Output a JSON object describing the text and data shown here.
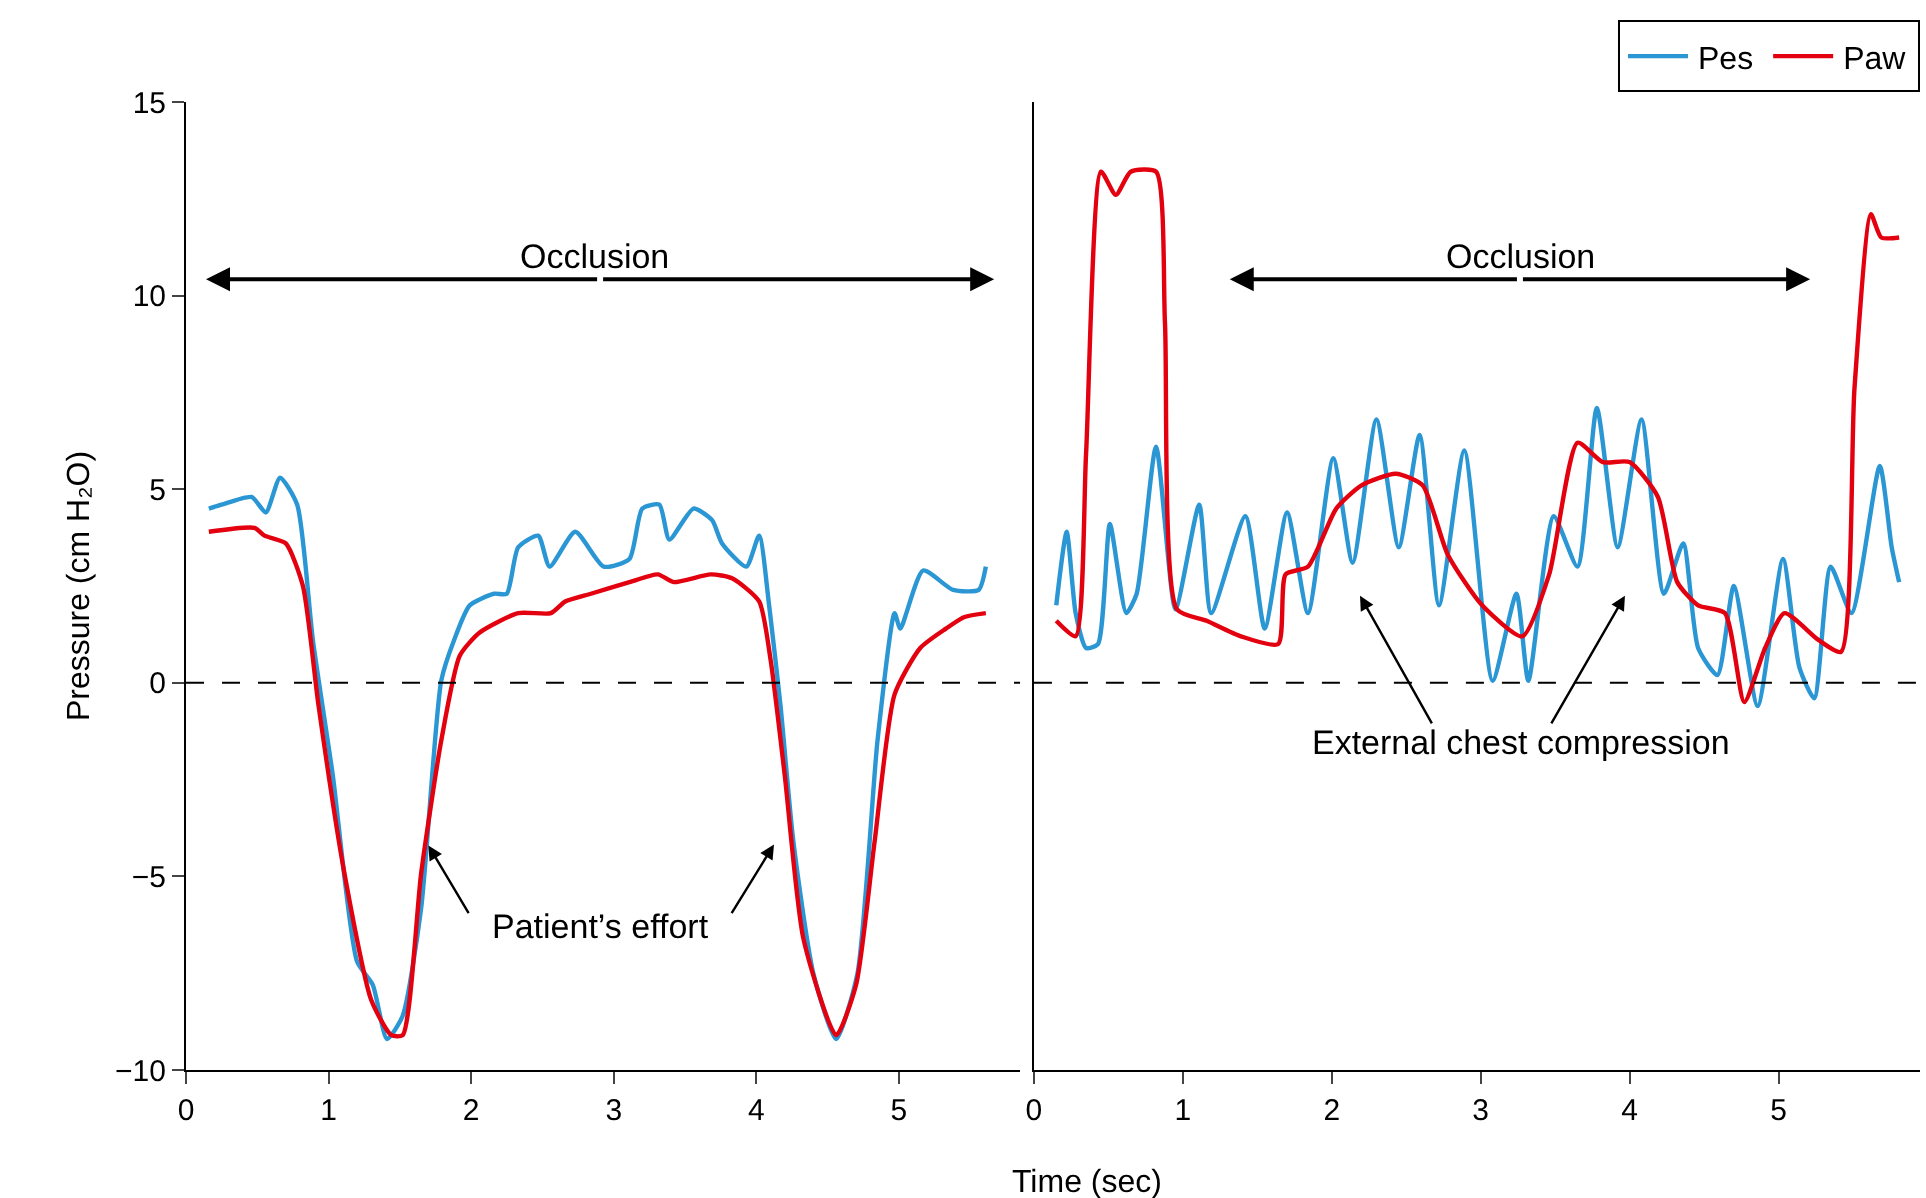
{
  "chart_data": [
    {
      "type": "line",
      "xlabel": "Time (sec)",
      "ylabel": "Pressure (cm H₂O)",
      "xlim": [
        0,
        5.85
      ],
      "xticks": [
        0,
        1,
        2,
        3,
        4,
        5
      ],
      "ylim": [
        -10,
        15
      ],
      "yticks": [
        {
          "value": -10,
          "label": "−10"
        },
        {
          "value": -5,
          "label": "−5"
        },
        0,
        5,
        10,
        15
      ],
      "grid": false,
      "legend": "top right",
      "line_style": "solid",
      "marker": "none",
      "ref_lines": [
        {
          "axis": "y",
          "value": 0,
          "line_style": "dashed",
          "color": "#000000"
        }
      ],
      "annotations": [
        "Occlusion",
        {
          "text": "Patient’s effort",
          "x": 1.7,
          "y": -4.2
        }
      ],
      "series": [
        {
          "name": "Pes",
          "color": "#2a96d4",
          "x": [
            0.16,
            0.25,
            0.46,
            0.56,
            0.66,
            0.78,
            0.89,
            1.03,
            1.2,
            1.31,
            1.41,
            1.52,
            1.65,
            1.79,
            1.88,
            1.99,
            2.16,
            2.25,
            2.33,
            2.47,
            2.55,
            2.73,
            2.93,
            3.11,
            3.2,
            3.32,
            3.39,
            3.56,
            3.69,
            3.76,
            3.93,
            4.02,
            4.09,
            4.17,
            4.26,
            4.4,
            4.56,
            4.71,
            4.85,
            4.97,
            5.01,
            5.17,
            5.38,
            5.56,
            5.61
          ],
          "values": [
            4.5,
            4.6,
            4.8,
            4.4,
            5.3,
            4.6,
            1.1,
            -2.4,
            -7.2,
            -7.8,
            -9.2,
            -8.6,
            -5.8,
            0.05,
            1.1,
            2.0,
            2.3,
            2.3,
            3.5,
            3.8,
            3.0,
            3.9,
            3.0,
            3.2,
            4.5,
            4.6,
            3.7,
            4.5,
            4.2,
            3.6,
            3.0,
            3.8,
            2.0,
            -0.6,
            -4.1,
            -7.5,
            -9.2,
            -7.5,
            -1.5,
            1.8,
            1.4,
            2.9,
            2.4,
            2.4,
            3.0
          ]
        },
        {
          "name": "Paw",
          "color": "#e3000f",
          "x": [
            0.16,
            0.48,
            0.55,
            0.7,
            0.82,
            0.93,
            1.11,
            1.3,
            1.44,
            1.52,
            1.65,
            1.79,
            1.92,
            2.06,
            2.33,
            2.56,
            2.66,
            2.84,
            3.11,
            3.31,
            3.42,
            3.68,
            3.83,
            4.02,
            4.1,
            4.2,
            4.33,
            4.56,
            4.7,
            4.83,
            4.97,
            5.15,
            5.33,
            5.46,
            5.61
          ],
          "values": [
            3.9,
            4.0,
            3.8,
            3.6,
            2.5,
            -0.6,
            -4.9,
            -8.2,
            -9.1,
            -9.1,
            -4.9,
            -1.5,
            0.7,
            1.3,
            1.8,
            1.8,
            2.1,
            2.3,
            2.6,
            2.8,
            2.6,
            2.8,
            2.7,
            2.1,
            0.6,
            -2.4,
            -6.6,
            -9.1,
            -7.8,
            -4.1,
            -0.3,
            0.9,
            1.4,
            1.7,
            1.8
          ]
        }
      ]
    },
    {
      "type": "line",
      "xlim": [
        0,
        5.95
      ],
      "xticks": [
        0,
        1,
        2,
        3,
        4,
        5
      ],
      "ylim": [
        -10,
        15
      ],
      "tick_labels": "x",
      "grid": false,
      "line_style": "solid",
      "marker": "none",
      "ref_lines": [
        {
          "axis": "y",
          "value": 0,
          "line_style": "dashed",
          "color": "#000000"
        }
      ],
      "annotations": [
        "Occlusion",
        "External chest compression"
      ],
      "series": [
        {
          "color": "#2a96d4",
          "x": [
            0.15,
            0.22,
            0.28,
            0.35,
            0.43,
            0.51,
            0.62,
            0.69,
            0.82,
            0.95,
            1.11,
            1.19,
            1.42,
            1.55,
            1.7,
            1.84,
            2.01,
            2.14,
            2.3,
            2.45,
            2.59,
            2.72,
            2.89,
            3.08,
            3.24,
            3.32,
            3.49,
            3.65,
            3.78,
            3.92,
            4.08,
            4.23,
            4.36,
            4.46,
            4.59,
            4.7,
            4.86,
            5.03,
            5.14,
            5.24,
            5.35,
            5.49,
            5.68,
            5.76,
            5.81
          ],
          "values": [
            2.0,
            3.9,
            1.8,
            0.9,
            1.0,
            4.1,
            1.8,
            2.3,
            6.1,
            1.9,
            4.6,
            1.8,
            4.3,
            1.4,
            4.4,
            1.8,
            5.8,
            3.1,
            6.8,
            3.5,
            6.4,
            2.0,
            6.0,
            0.05,
            2.3,
            0.05,
            4.3,
            3.0,
            7.1,
            3.5,
            6.8,
            2.3,
            3.6,
            0.9,
            0.2,
            2.5,
            -0.6,
            3.2,
            0.4,
            -0.4,
            3.0,
            1.8,
            5.6,
            3.5,
            2.6
          ]
        },
        {
          "color": "#e3000f",
          "x": [
            0.15,
            0.28,
            0.35,
            0.45,
            0.55,
            0.65,
            0.82,
            0.88,
            0.96,
            1.16,
            1.39,
            1.64,
            1.69,
            1.84,
            2.03,
            2.2,
            2.43,
            2.61,
            2.78,
            3.01,
            3.28,
            3.46,
            3.65,
            3.82,
            4.0,
            4.19,
            4.32,
            4.46,
            4.64,
            4.77,
            4.91,
            5.04,
            5.27,
            5.42,
            5.51,
            5.62,
            5.69,
            5.81
          ],
          "values": [
            1.6,
            1.2,
            5.9,
            13.2,
            12.6,
            13.2,
            13.2,
            9.3,
            1.9,
            1.6,
            1.2,
            1.0,
            2.8,
            3.0,
            4.5,
            5.1,
            5.4,
            5.1,
            3.3,
            2.0,
            1.2,
            2.8,
            6.2,
            5.7,
            5.7,
            4.8,
            2.6,
            2.0,
            1.8,
            -0.5,
            0.9,
            1.8,
            1.1,
            0.8,
            7.6,
            12.1,
            11.5,
            11.5
          ]
        }
      ]
    }
  ]
}
